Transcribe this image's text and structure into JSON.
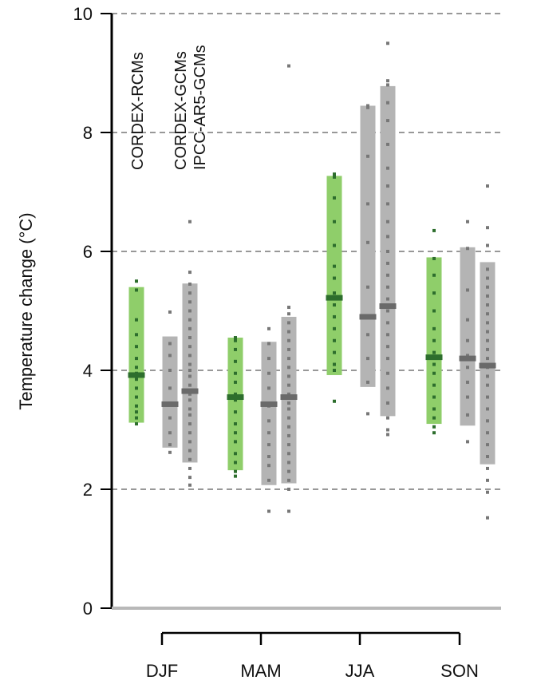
{
  "chart_data": {
    "type": "box-range",
    "ylabel": "Temperature change (°C)",
    "ylim": [
      0,
      10
    ],
    "yticks": [
      "0",
      "2",
      "4",
      "6",
      "8",
      "10"
    ],
    "grid": "horizontal dashed at 2, 4, 6, 8, 10",
    "categories": [
      "DJF",
      "MAM",
      "JJA",
      "SON"
    ],
    "series": [
      {
        "name": "CORDEX-RCMs",
        "color": "#8fce6a",
        "median_color": "#2d6e2d",
        "dot_color": "#2d6e2d",
        "values": [
          {
            "low": 3.12,
            "high": 5.4,
            "median": 3.92,
            "points": [
              3.1,
              3.2,
              3.3,
              3.4,
              3.55,
              3.7,
              3.85,
              3.95,
              4.05,
              4.2,
              4.4,
              4.6,
              4.85,
              5.35,
              5.5
            ]
          },
          {
            "low": 2.32,
            "high": 4.55,
            "median": 3.55,
            "points": [
              2.22,
              2.3,
              2.45,
              2.6,
              2.8,
              2.95,
              3.1,
              3.3,
              3.5,
              3.6,
              3.8,
              3.95,
              4.15,
              4.35,
              4.5,
              4.55
            ]
          },
          {
            "low": 3.92,
            "high": 7.27,
            "median": 5.22,
            "points": [
              3.48,
              4.0,
              4.1,
              4.3,
              4.5,
              4.7,
              4.9,
              5.1,
              5.3,
              5.55,
              5.75,
              6.1,
              6.5,
              6.9,
              7.25,
              7.3
            ]
          },
          {
            "low": 3.1,
            "high": 5.9,
            "median": 4.22,
            "points": [
              2.95,
              3.05,
              3.2,
              3.35,
              3.55,
              3.75,
              3.95,
              4.1,
              4.3,
              4.5,
              4.7,
              5.0,
              5.3,
              5.6,
              5.88,
              6.35
            ]
          }
        ]
      },
      {
        "name": "CORDEX-GCMs",
        "color": "#b4b4b4",
        "median_color": "#6a6a6a",
        "dot_color": "#777777",
        "values": [
          {
            "low": 2.7,
            "high": 4.57,
            "median": 3.43,
            "points": [
              2.62,
              2.75,
              2.95,
              3.2,
              3.45,
              3.7,
              4.0,
              4.25,
              4.45,
              4.98
            ]
          },
          {
            "low": 2.07,
            "high": 4.48,
            "median": 3.43,
            "points": [
              1.63,
              2.15,
              2.4,
              2.55,
              2.75,
              2.95,
              3.15,
              3.4,
              3.7,
              3.95,
              4.2,
              4.45,
              4.7
            ]
          },
          {
            "low": 3.72,
            "high": 8.45,
            "median": 4.9,
            "points": [
              3.27,
              3.8,
              4.2,
              4.6,
              4.9,
              5.4,
              6.15,
              6.8,
              7.6,
              8.42,
              8.45
            ]
          },
          {
            "low": 3.07,
            "high": 6.07,
            "median": 4.2,
            "points": [
              2.8,
              3.25,
              3.55,
              3.8,
              4.05,
              4.25,
              4.5,
              4.85,
              5.35,
              6.05,
              6.5
            ]
          }
        ]
      },
      {
        "name": "IPCC-AR5-GCMs",
        "color": "#b4b4b4",
        "median_color": "#6a6a6a",
        "dot_color": "#777777",
        "values": [
          {
            "low": 2.45,
            "high": 5.46,
            "median": 3.65,
            "points": [
              2.07,
              2.2,
              2.35,
              2.5,
              2.65,
              2.8,
              2.95,
              3.1,
              3.25,
              3.35,
              3.5,
              3.6,
              3.75,
              3.9,
              4.0,
              4.1,
              4.25,
              4.4,
              4.55,
              4.7,
              4.85,
              5.0,
              5.15,
              5.3,
              5.45,
              5.65,
              6.5
            ]
          },
          {
            "low": 2.1,
            "high": 4.9,
            "median": 3.55,
            "points": [
              1.63,
              2.0,
              2.15,
              2.3,
              2.45,
              2.6,
              2.75,
              2.9,
              3.05,
              3.2,
              3.35,
              3.45,
              3.6,
              3.75,
              3.9,
              4.05,
              4.2,
              4.35,
              4.5,
              4.65,
              4.8,
              4.95,
              5.06,
              9.12
            ]
          },
          {
            "low": 3.23,
            "high": 8.78,
            "median": 5.08,
            "points": [
              2.92,
              3.0,
              3.2,
              3.45,
              3.7,
              3.95,
              4.2,
              4.4,
              4.6,
              4.8,
              5.0,
              5.2,
              5.4,
              5.6,
              5.8,
              6.0,
              6.25,
              6.5,
              6.8,
              7.1,
              7.4,
              7.8,
              8.2,
              8.5,
              8.8,
              8.87,
              9.5
            ]
          },
          {
            "low": 2.42,
            "high": 5.82,
            "median": 4.08,
            "points": [
              1.52,
              1.95,
              2.15,
              2.35,
              2.55,
              2.75,
              2.95,
              3.15,
              3.35,
              3.55,
              3.75,
              3.9,
              4.05,
              4.2,
              4.35,
              4.5,
              4.65,
              4.8,
              4.95,
              5.1,
              5.25,
              5.4,
              5.55,
              5.7,
              6.1,
              6.4,
              7.1
            ]
          }
        ]
      }
    ]
  }
}
